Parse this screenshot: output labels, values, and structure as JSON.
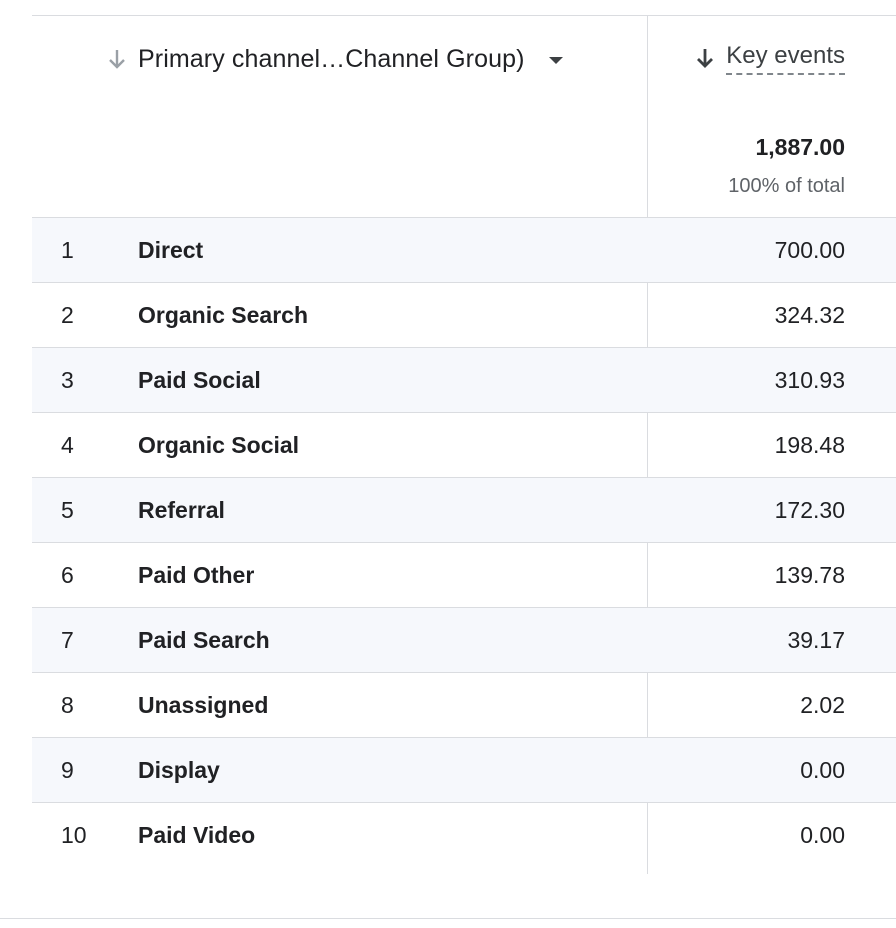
{
  "header": {
    "dimension_label": "Primary channel…Channel Group)",
    "metric_label": "Key events",
    "sort_icon": "arrow-down-icon",
    "dropdown_icon": "caret-down-icon",
    "colors": {
      "inactive_sort": "#9aa0a6",
      "active_sort": "#3c4043",
      "row_shade": "#f6f8fc",
      "divider": "#dadce0"
    }
  },
  "totals": {
    "value": "1,887.00",
    "percent_label": "100% of total"
  },
  "rows": [
    {
      "index": "1",
      "channel": "Direct",
      "value": "700.00"
    },
    {
      "index": "2",
      "channel": "Organic Search",
      "value": "324.32"
    },
    {
      "index": "3",
      "channel": "Paid Social",
      "value": "310.93"
    },
    {
      "index": "4",
      "channel": "Organic Social",
      "value": "198.48"
    },
    {
      "index": "5",
      "channel": "Referral",
      "value": "172.30"
    },
    {
      "index": "6",
      "channel": "Paid Other",
      "value": "139.78"
    },
    {
      "index": "7",
      "channel": "Paid Search",
      "value": "39.17"
    },
    {
      "index": "8",
      "channel": "Unassigned",
      "value": "2.02"
    },
    {
      "index": "9",
      "channel": "Display",
      "value": "0.00"
    },
    {
      "index": "10",
      "channel": "Paid Video",
      "value": "0.00"
    }
  ]
}
